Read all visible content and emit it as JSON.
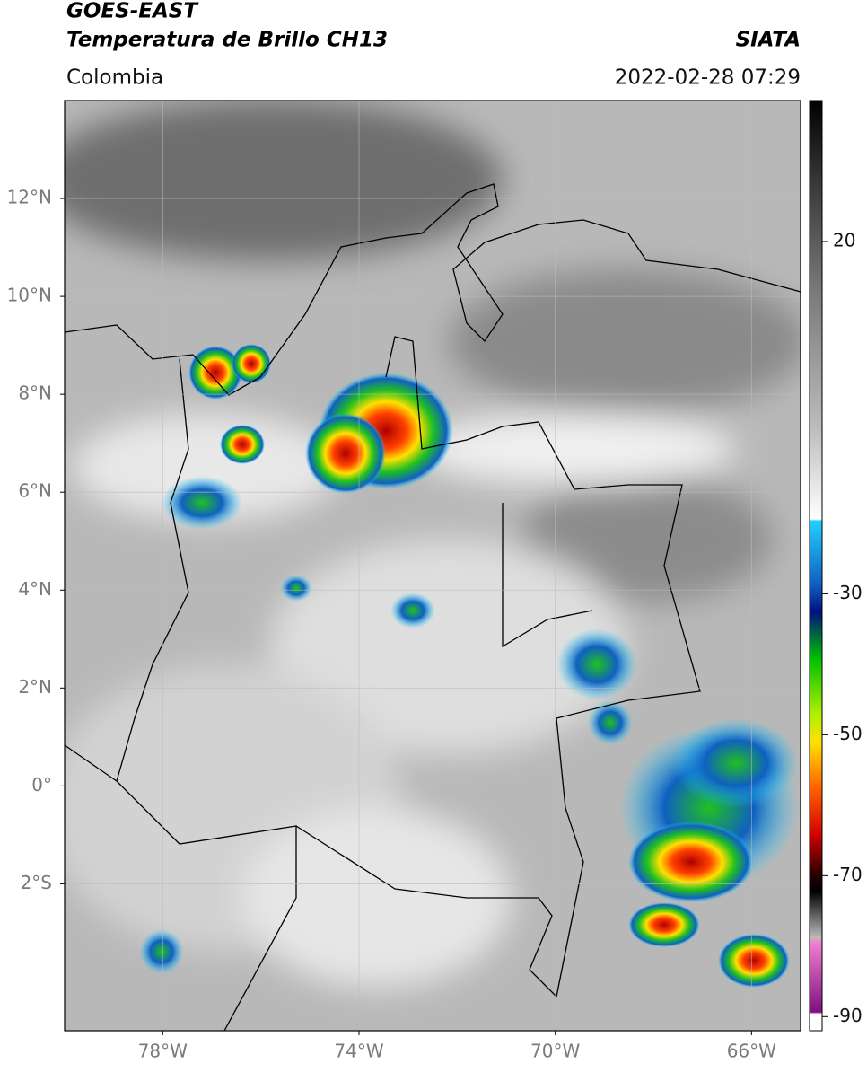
{
  "header": {
    "title": "GOES-EAST",
    "subtitle": "Temperatura de Brillo CH13",
    "source": "SIATA",
    "region": "Colombia",
    "datetime": "2022-02-28 07:29"
  },
  "map": {
    "lon_range": [
      -80,
      -65
    ],
    "lat_range": [
      -5,
      14
    ],
    "grid": true,
    "lon_ticks": [
      {
        "value": -78,
        "label": "78°W"
      },
      {
        "value": -74,
        "label": "74°W"
      },
      {
        "value": -70,
        "label": "70°W"
      },
      {
        "value": -66,
        "label": "66°W"
      }
    ],
    "lat_ticks": [
      {
        "value": 12,
        "label": "12°N"
      },
      {
        "value": 10,
        "label": "10°N"
      },
      {
        "value": 8,
        "label": "8°N"
      },
      {
        "value": 6,
        "label": "6°N"
      },
      {
        "value": 4,
        "label": "4°N"
      },
      {
        "value": 2,
        "label": "2°N"
      },
      {
        "value": 0,
        "label": "0°"
      },
      {
        "value": -2,
        "label": "2°S"
      }
    ]
  },
  "colorbar": {
    "range": [
      -92,
      40
    ],
    "ticks": [
      20,
      -30,
      -50,
      -70,
      -90
    ]
  }
}
